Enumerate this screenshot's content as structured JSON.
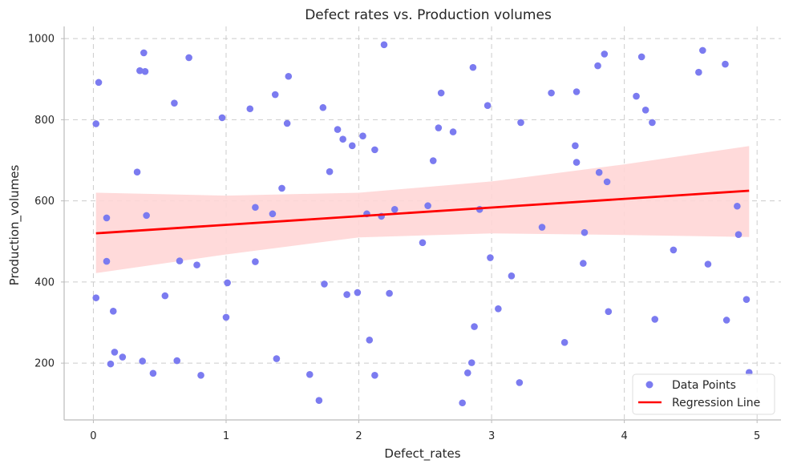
{
  "chart_data": {
    "type": "scatter",
    "title": "Defect rates vs. Production volumes",
    "xlabel": "Defect_rates",
    "ylabel": "Production_volumes",
    "xlim": [
      -0.22,
      5.18
    ],
    "ylim": [
      60,
      1030
    ],
    "xticks": [
      0,
      1,
      2,
      3,
      4,
      5
    ],
    "yticks": [
      200,
      400,
      600,
      800,
      1000
    ],
    "grid": true,
    "legend_position": "bottom-right",
    "colors": {
      "points": "#7b7bf0",
      "line": "#ff0000",
      "band": "#ffd6d6"
    },
    "series": [
      {
        "name": "Data Points",
        "kind": "scatter",
        "points": [
          [
            0.02,
            790
          ],
          [
            0.04,
            892
          ],
          [
            0.02,
            361
          ],
          [
            0.1,
            558
          ],
          [
            0.1,
            451
          ],
          [
            0.13,
            198
          ],
          [
            0.15,
            328
          ],
          [
            0.16,
            227
          ],
          [
            0.22,
            215
          ],
          [
            0.33,
            671
          ],
          [
            0.35,
            921
          ],
          [
            0.37,
            205
          ],
          [
            0.38,
            965
          ],
          [
            0.39,
            919
          ],
          [
            0.4,
            564
          ],
          [
            0.45,
            175
          ],
          [
            0.54,
            366
          ],
          [
            0.61,
            841
          ],
          [
            0.63,
            206
          ],
          [
            0.65,
            452
          ],
          [
            0.72,
            953
          ],
          [
            0.78,
            442
          ],
          [
            0.81,
            170
          ],
          [
            0.97,
            805
          ],
          [
            1.01,
            398
          ],
          [
            1.0,
            313
          ],
          [
            1.18,
            827
          ],
          [
            1.22,
            584
          ],
          [
            1.22,
            450
          ],
          [
            1.35,
            568
          ],
          [
            1.37,
            862
          ],
          [
            1.38,
            211
          ],
          [
            1.42,
            631
          ],
          [
            1.46,
            791
          ],
          [
            1.47,
            907
          ],
          [
            1.63,
            172
          ],
          [
            1.7,
            108
          ],
          [
            1.73,
            830
          ],
          [
            1.74,
            395
          ],
          [
            1.78,
            672
          ],
          [
            1.84,
            776
          ],
          [
            1.88,
            752
          ],
          [
            1.91,
            369
          ],
          [
            1.95,
            736
          ],
          [
            1.99,
            374
          ],
          [
            2.03,
            760
          ],
          [
            2.06,
            568
          ],
          [
            2.08,
            257
          ],
          [
            2.12,
            726
          ],
          [
            2.12,
            170
          ],
          [
            2.17,
            562
          ],
          [
            2.19,
            985
          ],
          [
            2.23,
            372
          ],
          [
            2.27,
            579
          ],
          [
            2.48,
            497
          ],
          [
            2.52,
            588
          ],
          [
            2.56,
            699
          ],
          [
            2.6,
            780
          ],
          [
            2.62,
            866
          ],
          [
            2.71,
            770
          ],
          [
            2.78,
            102
          ],
          [
            2.82,
            176
          ],
          [
            2.85,
            201
          ],
          [
            2.86,
            929
          ],
          [
            2.87,
            290
          ],
          [
            2.91,
            579
          ],
          [
            2.97,
            835
          ],
          [
            2.99,
            460
          ],
          [
            3.05,
            334
          ],
          [
            3.15,
            415
          ],
          [
            3.21,
            152
          ],
          [
            3.22,
            793
          ],
          [
            3.38,
            535
          ],
          [
            3.45,
            866
          ],
          [
            3.55,
            251
          ],
          [
            3.63,
            736
          ],
          [
            3.64,
            869
          ],
          [
            3.64,
            695
          ],
          [
            3.69,
            446
          ],
          [
            3.7,
            522
          ],
          [
            3.8,
            933
          ],
          [
            3.81,
            670
          ],
          [
            3.85,
            962
          ],
          [
            3.87,
            647
          ],
          [
            3.88,
            327
          ],
          [
            4.09,
            858
          ],
          [
            4.13,
            955
          ],
          [
            4.16,
            824
          ],
          [
            4.21,
            793
          ],
          [
            4.23,
            308
          ],
          [
            4.37,
            479
          ],
          [
            4.56,
            917
          ],
          [
            4.59,
            971
          ],
          [
            4.63,
            444
          ],
          [
            4.76,
            937
          ],
          [
            4.77,
            306
          ],
          [
            4.85,
            587
          ],
          [
            4.86,
            517
          ],
          [
            4.92,
            357
          ],
          [
            4.94,
            177
          ]
        ]
      },
      {
        "name": "Regression Line",
        "kind": "line",
        "x": [
          0.02,
          4.94
        ],
        "y": [
          520,
          625
        ]
      }
    ],
    "confidence_band": {
      "x": [
        0.02,
        1,
        2,
        3,
        4,
        4.94
      ],
      "upper": [
        620,
        613,
        620,
        648,
        690,
        735
      ],
      "lower": [
        422,
        468,
        510,
        520,
        516,
        511
      ]
    }
  }
}
